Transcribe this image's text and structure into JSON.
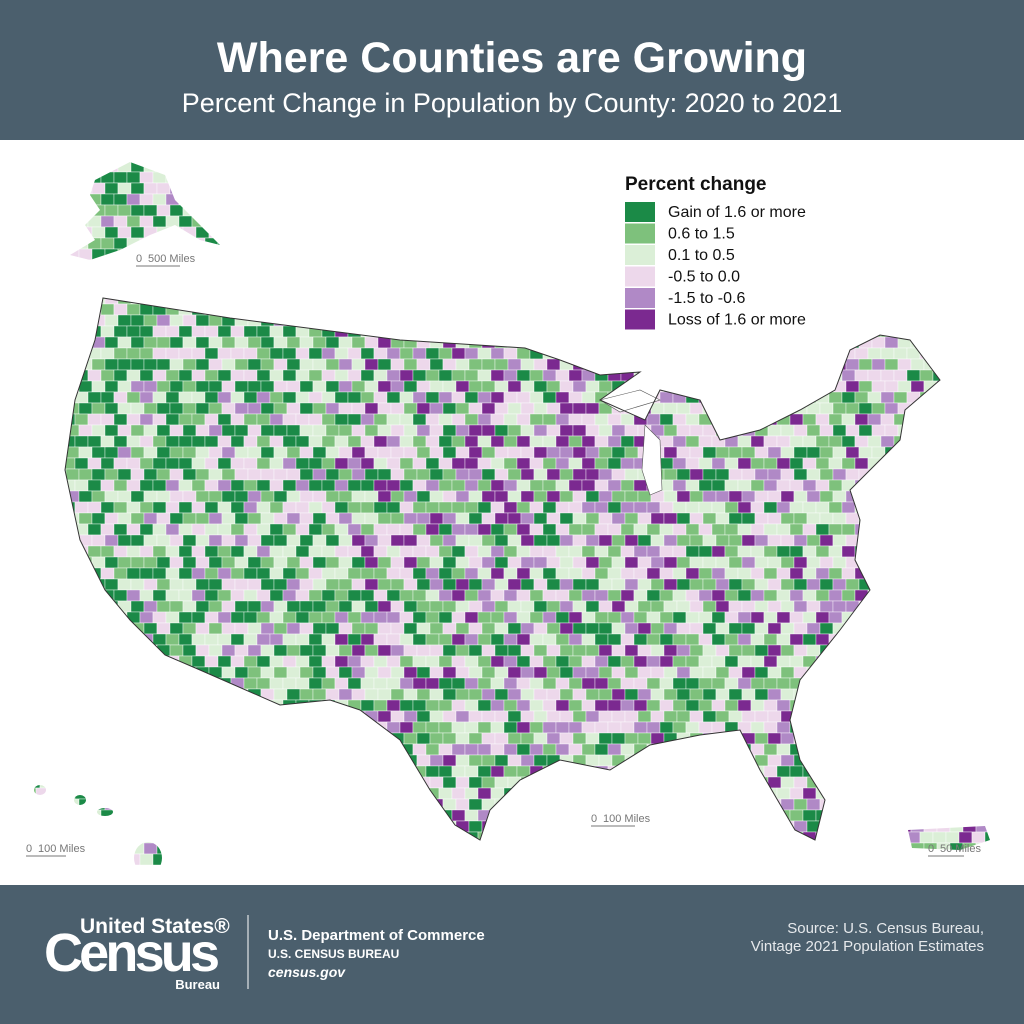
{
  "header": {
    "title": "Where Counties are Growing",
    "subtitle": "Percent Change in Population by County: 2020 to 2021"
  },
  "legend": {
    "title": "Percent change",
    "items": [
      {
        "label": "Gain of 1.6 or more",
        "color": "#1b8a47"
      },
      {
        "label": "0.6 to 1.5",
        "color": "#7ec17c"
      },
      {
        "label": "0.1 to 0.5",
        "color": "#dbefd7"
      },
      {
        "label": "-0.5 to 0.0",
        "color": "#edd8eb"
      },
      {
        "label": "-1.5 to -0.6",
        "color": "#b089c6"
      },
      {
        "label": "Loss of 1.6 or more",
        "color": "#7b2990"
      }
    ]
  },
  "scale_bars": [
    {
      "zero": "0",
      "label": "500 Miles"
    },
    {
      "zero": "0",
      "label": "100 Miles"
    },
    {
      "zero": "0",
      "label": "100 Miles"
    },
    {
      "zero": "0",
      "label": "50 Miles"
    }
  ],
  "footer": {
    "logo": {
      "top": "United States®",
      "main": "Census",
      "bottom": "Bureau"
    },
    "department": "U.S. Department of Commerce",
    "bureau": "U.S. CENSUS BUREAU",
    "website": "census.gov",
    "source": [
      "Source: U.S. Census Bureau,",
      "Vintage 2021 Population Estimates"
    ]
  }
}
